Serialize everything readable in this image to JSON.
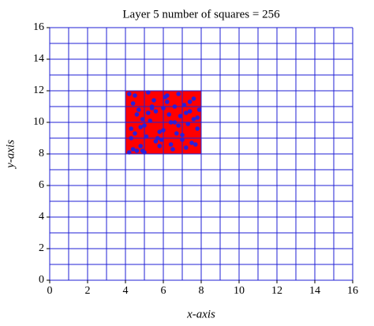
{
  "chart_data": {
    "type": "scatter",
    "title": "Layer 5 number of squares = 256",
    "x_label": "x-axis",
    "y_label": "y-axis",
    "xlim": [
      0,
      16
    ],
    "ylim": [
      0,
      16
    ],
    "xticks": [
      0,
      2,
      4,
      6,
      8,
      10,
      12,
      14,
      16
    ],
    "yticks": [
      0,
      2,
      4,
      6,
      8,
      10,
      12,
      14,
      16
    ],
    "minor_xticks": [
      0,
      1,
      2,
      3,
      4,
      5,
      6,
      7,
      8,
      9,
      10,
      11,
      12,
      13,
      14,
      15,
      16
    ],
    "minor_yticks": [
      0,
      1,
      2,
      3,
      4,
      5,
      6,
      7,
      8,
      9,
      10,
      11,
      12,
      13,
      14,
      15,
      16
    ],
    "grid": true,
    "grid_color": "#1f1fd6",
    "region": {
      "x": [
        4,
        8
      ],
      "y": [
        8,
        12
      ],
      "color": "#ff0000"
    },
    "series": [
      {
        "color": "#2b1fd8",
        "x": [
          4.2,
          4.4,
          4.3,
          4.6,
          4.8,
          5.0,
          5.2,
          4.5,
          4.9,
          5.4,
          5.6,
          5.8,
          6.0,
          6.2,
          6.4,
          6.6,
          6.8,
          7.0,
          7.2,
          7.4,
          7.6,
          7.8,
          4.3,
          4.7,
          5.1,
          5.5,
          5.9,
          6.3,
          6.7,
          7.1,
          7.5,
          7.9,
          4.4,
          4.8,
          5.3,
          5.7,
          6.1,
          6.5,
          6.9,
          7.3,
          7.7,
          4.2,
          4.6,
          5.0,
          5.6,
          6.0,
          6.6,
          7.0,
          7.6,
          4.5,
          5.2,
          5.8,
          6.4,
          6.8,
          7.4,
          7.8,
          4.9,
          5.4,
          6.2,
          7.2
        ],
        "values": [
          8.1,
          8.3,
          9.0,
          8.2,
          8.5,
          9.8,
          10.6,
          11.7,
          10.2,
          11.0,
          8.8,
          9.4,
          10.9,
          11.3,
          8.6,
          10.0,
          11.8,
          9.2,
          8.4,
          10.7,
          11.5,
          10.3,
          9.6,
          10.8,
          9.1,
          11.4,
          8.9,
          10.5,
          9.3,
          11.1,
          8.7,
          10.8,
          11.2,
          9.7,
          10.1,
          9.0,
          11.6,
          8.3,
          10.4,
          9.9,
          8.6,
          11.8,
          10.5,
          8.1,
          10.7,
          9.5,
          11.0,
          8.9,
          10.2,
          9.3,
          11.9,
          8.5,
          10.0,
          9.8,
          11.3,
          9.6,
          8.2,
          10.9,
          11.7,
          10.6
        ]
      }
    ]
  }
}
